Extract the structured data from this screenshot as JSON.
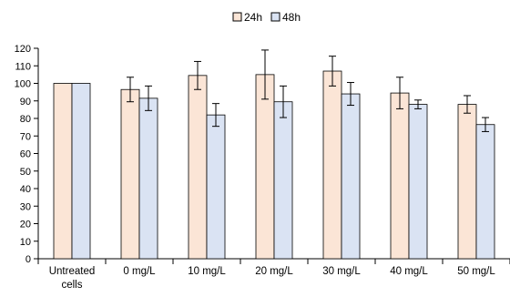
{
  "chart_data": {
    "type": "bar",
    "title": "",
    "xlabel": "",
    "ylabel": "",
    "ylim": [
      0,
      120
    ],
    "yticks": [
      0,
      10,
      20,
      30,
      40,
      50,
      60,
      70,
      80,
      90,
      100,
      110,
      120
    ],
    "grid": false,
    "legend_position": "top-center",
    "categories": [
      [
        "Untreated",
        "cells"
      ],
      [
        "0 mg/L"
      ],
      [
        "10 mg/L"
      ],
      [
        "20 mg/L"
      ],
      [
        "30 mg/L"
      ],
      [
        "40 mg/L"
      ],
      [
        "50 mg/L"
      ]
    ],
    "series": [
      {
        "name": "24h",
        "color": "#fbe5d6",
        "values": [
          100,
          96.5,
          104.5,
          105,
          107,
          94.5,
          88
        ],
        "errors": [
          0,
          7,
          8,
          14,
          8.5,
          9,
          5
        ]
      },
      {
        "name": "48h",
        "color": "#dae3f3",
        "values": [
          100,
          91.5,
          82,
          89.5,
          94,
          88,
          76.5
        ],
        "errors": [
          0,
          7,
          6.5,
          9,
          6.5,
          2.5,
          4
        ]
      }
    ]
  }
}
